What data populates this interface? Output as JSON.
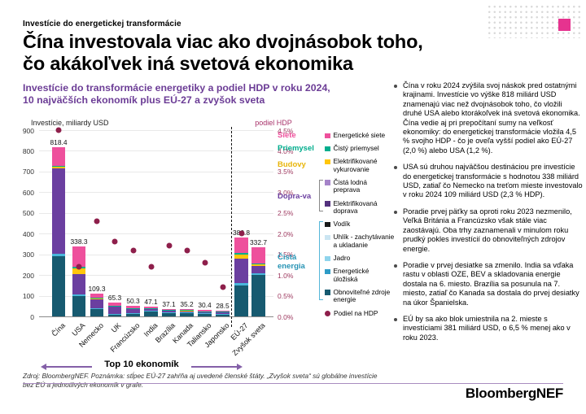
{
  "page": {
    "eyebrow": "Investície do energetickej transformácie",
    "title_line1": "Čína investovala viac ako dvojnásobok toho,",
    "title_line2": "čo akákoľvek iná svetová ekonomika",
    "source_note": "Zdroj: BloombergNEF. Poznámka: stĺpec EÚ-27 zahŕňa aj uvedené členské štáty. „Zvyšok sveta“ sú globálne investície bez EÚ a jednotlivých ekonomík v grafe.",
    "footer_logo": "BloombergNEF"
  },
  "colors": {
    "accent_purple": "#6C3D96",
    "axis_maroon": "#9E3A60",
    "hdp_label_maroon": "#A8326A",
    "gdp_dot": "#8E1F4B",
    "pink_square": "#E6338F",
    "arrow_purple": "#8460A8",
    "rule_purple": "#A88CC0"
  },
  "chart": {
    "subtitle_line1": "Investície do transformácie energetiky a podiel HDP v roku 2024,",
    "subtitle_line2": "10 najväčších ekonomík plus EÚ-27 a zvyšok sveta",
    "left_axis_label": "Investície, miliardy USD",
    "right_axis_label": "podiel HDP",
    "bottom_arrow_label": "Top 10 ekonomík"
  },
  "chart_data": {
    "type": "bar",
    "stacked": true,
    "categories": [
      "Čína",
      "USA",
      "Nemecko",
      "UK",
      "Francúzsko",
      "India",
      "Brazília",
      "Kanada",
      "Taliansko",
      "Japonsko",
      "EÚ-27",
      "Zvyšok sveta"
    ],
    "totals": [
      818.4,
      338.3,
      109.3,
      65.3,
      50.3,
      47.1,
      37.1,
      35.2,
      30.4,
      28.5,
      380.8,
      332.7
    ],
    "series": [
      {
        "name": "Obnoviteľné zdroje energie",
        "color": "#175A70",
        "values": [
          290,
          98,
          36,
          9,
          12,
          26,
          18,
          16,
          12,
          12,
          150,
          200
        ]
      },
      {
        "name": "Energetické úložiská",
        "color": "#49B6DB",
        "values": [
          14,
          10,
          5,
          3,
          2,
          2,
          1,
          2,
          2,
          1,
          10,
          10
        ]
      },
      {
        "name": "Elektrifikovaná doprava",
        "color": "#6B3FA0",
        "values": [
          413,
          95,
          44,
          36,
          22,
          10,
          11,
          9,
          7,
          8,
          120,
          35
        ]
      },
      {
        "name": "Elektrifikované vykurovanie",
        "color": "#FFC60B",
        "values": [
          6,
          28,
          2,
          4,
          4,
          0.5,
          0.3,
          2,
          4,
          3,
          20,
          8
        ]
      },
      {
        "name": "Čistý priemysel",
        "color": "#00AD8D",
        "values": [
          4,
          8,
          2,
          1,
          1,
          0.5,
          0.4,
          1,
          0.4,
          0.5,
          8,
          3
        ]
      },
      {
        "name": "Energetické siete",
        "color": "#EE509C",
        "values": [
          91.4,
          99.3,
          20.3,
          12.3,
          9.3,
          8.1,
          6.4,
          5.2,
          5,
          4,
          72.8,
          76.7
        ]
      }
    ],
    "gdp_share_pct": [
      4.5,
      1.2,
      2.3,
      1.8,
      1.6,
      1.2,
      1.7,
      1.6,
      1.3,
      0.7,
      2.0,
      null
    ],
    "gdp_series_name": "Podiel na HDP",
    "left_axis": {
      "min": 0,
      "max": 900,
      "step": 100
    },
    "right_axis": {
      "min": 0,
      "max": 4.5,
      "step": 0.5,
      "suffix": "%"
    },
    "divider_after_index": 9,
    "grid": true,
    "legend_position": "right"
  },
  "legend": {
    "items": [
      {
        "label": "Energetické siete",
        "color": "#EE509C",
        "shape": "square"
      },
      {
        "label": "Čistý priemysel",
        "color": "#00AD8D",
        "shape": "square"
      },
      {
        "label": "Elektrifikované vykurovanie",
        "color": "#FFC60B",
        "shape": "square"
      },
      {
        "label": "Čistá lodná preprava",
        "color": "#A584C9",
        "shape": "square"
      },
      {
        "label": "Elektrifikovaná doprava",
        "color": "#53317E",
        "shape": "square"
      },
      {
        "label": "Vodík",
        "color": "#1A1A1A",
        "shape": "square"
      },
      {
        "label": "Uhlík - zachytávanie a ukladanie",
        "color": "#CBE5F2",
        "shape": "square"
      },
      {
        "label": "Jadro",
        "color": "#8FD4EC",
        "shape": "square"
      },
      {
        "label": "Energetické úložiská",
        "color": "#2E9BC6",
        "shape": "square"
      },
      {
        "label": "Obnoviteľné zdroje energie",
        "color": "#175A70",
        "shape": "square"
      },
      {
        "label": "Podiel na HDP",
        "color": "#8E1F4B",
        "shape": "circle"
      }
    ],
    "groups": [
      {
        "label": "Siete",
        "label_color": "#EE509C",
        "item_indices": [
          0
        ],
        "bracket_color": null
      },
      {
        "label": "Priemysel",
        "label_color": "#00AD8D",
        "item_indices": [
          1
        ],
        "bracket_color": null
      },
      {
        "label": "Budovy",
        "label_color": "#E8B50A",
        "item_indices": [
          2
        ],
        "bracket_color": null
      },
      {
        "label": "Dopra-va",
        "label_color": "#6B3FA0",
        "item_indices": [
          3,
          4
        ],
        "bracket_color": "#888888"
      },
      {
        "label": "Čistá energia",
        "label_color": "#2693B4",
        "item_indices": [
          5,
          6,
          7,
          8,
          9
        ],
        "bracket_color": "#55B7D9"
      }
    ]
  },
  "bullets": [
    "Čína v roku 2024 zvýšila svoj náskok pred ostatnými krajinami. Investície vo výške 818 miliárd USD znamenajú viac než dvojnásobok toho, čo vložili druhé USA alebo ktorákoľvek iná svetová ekonomika. Čína vedie aj pri prepočítaní sumy na veľkosť ekonomiky: do energetickej transformácie vložila 4,5 % svojho HDP - čo je oveľa vyšší podiel ako EÚ-27 (2,0 %) alebo USA (1,2 %).",
    "USA sú druhou najväčšou destináciou pre investície do energetickej transformácie s hodnotou 338 miliárd USD, zatiaľ čo Nemecko na treťom mieste investovalo v roku 2024 109 miliárd USD (2,3 % HDP).",
    "Poradie prvej päťky sa oproti roku 2023 nezmenilo, Veľká Británia a Francúzsko však stále viac zaostávajú. Oba trhy zaznamenali v minulom roku prudký pokles investícií do obnoviteľných zdrojov energie.",
    "Poradie v prvej desiatke sa zmenilo. India sa vďaka rastu v oblasti OZE, BEV a skladovania energie dostala na 6. miesto. Brazília sa posunula na 7. miesto, zatiaľ čo Kanada sa dostala do prvej desiatky na úkor Španielska.",
    "EÚ by sa ako blok umiestnila na 2. mieste s investíciami 381 miliárd USD, o 6,5 % menej ako v roku 2023."
  ]
}
